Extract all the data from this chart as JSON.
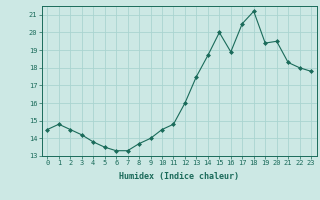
{
  "x": [
    0,
    1,
    2,
    3,
    4,
    5,
    6,
    7,
    8,
    9,
    10,
    11,
    12,
    13,
    14,
    15,
    16,
    17,
    18,
    19,
    20,
    21,
    22,
    23
  ],
  "y": [
    14.5,
    14.8,
    14.5,
    14.2,
    13.8,
    13.5,
    13.3,
    13.3,
    13.7,
    14.0,
    14.5,
    14.8,
    16.0,
    17.5,
    18.7,
    20.0,
    18.9,
    20.5,
    21.2,
    19.4,
    19.5,
    18.3,
    18.0,
    17.8
  ],
  "line_color": "#1a6b5a",
  "marker": "D",
  "marker_size": 2.0,
  "bg_color": "#cce8e4",
  "grid_color": "#aad4d0",
  "xlabel": "Humidex (Indice chaleur)",
  "ylabel_ticks": [
    13,
    14,
    15,
    16,
    17,
    18,
    19,
    20,
    21
  ],
  "xlim": [
    -0.5,
    23.5
  ],
  "ylim": [
    13,
    21.5
  ],
  "tick_fontsize": 5.0,
  "xlabel_fontsize": 6.0
}
